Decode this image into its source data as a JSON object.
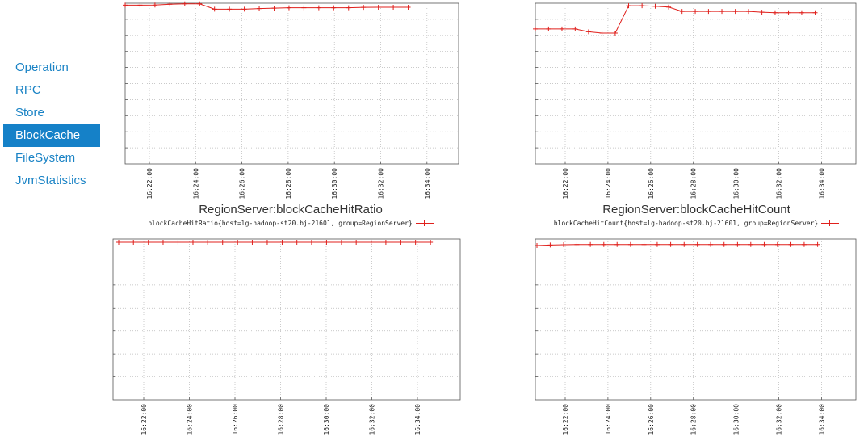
{
  "nav": {
    "items": [
      {
        "label": "Operation",
        "active": false
      },
      {
        "label": "RPC",
        "active": false
      },
      {
        "label": "Store",
        "active": false
      },
      {
        "label": "BlockCache",
        "active": true
      },
      {
        "label": "FileSystem",
        "active": false
      },
      {
        "label": "JvmStatistics",
        "active": false
      }
    ]
  },
  "colors": {
    "series": "#e0201c",
    "grid": "#b8b8b8",
    "nav_active": "#1581c8",
    "nav_link": "#1a83c5"
  },
  "chart_data": [
    {
      "type": "line",
      "title": "RegionServer:blockCacheHitRatio",
      "legend": "blockCacheHitRatio{host=lg-hadoop-st20.bj-21601, group=RegionServer}",
      "x_ticks": [
        "16:22:00",
        "16:24:00",
        "16:26:00",
        "16:28:00",
        "16:30:00",
        "16:32:00",
        "16:34:00"
      ],
      "grid": true,
      "series": [
        {
          "x_minutes": [
            0.0,
            0.74,
            1.48,
            2.22,
            2.96,
            3.7,
            4.44,
            5.18,
            5.92,
            6.66,
            7.4,
            8.14,
            8.88,
            9.62,
            10.36,
            11.1,
            11.84,
            12.58,
            13.32,
            14.06
          ],
          "values": [
            98.8,
            98.8,
            98.9,
            99.4,
            99.6,
            99.6,
            96.3,
            96.3,
            96.3,
            96.7,
            96.9,
            97.2,
            97.2,
            97.2,
            97.2,
            97.2,
            97.4,
            97.5,
            97.5,
            97.5
          ]
        }
      ]
    },
    {
      "type": "line",
      "title": "RegionServer:blockCacheHitCount",
      "legend": "blockCacheHitCount{host=lg-hadoop-st20.bj-21601, group=RegionServer}",
      "x_ticks": [
        "16:22:00",
        "16:24:00",
        "16:26:00",
        "16:28:00",
        "16:30:00",
        "16:32:00",
        "16:34:00"
      ],
      "grid": true,
      "series": [
        {
          "x_minutes": [
            0.0,
            0.66,
            1.33,
            1.99,
            2.66,
            3.33,
            3.99,
            4.66,
            5.33,
            5.99,
            6.66,
            7.33,
            7.99,
            8.65,
            9.32,
            9.99,
            10.65,
            11.32,
            11.98,
            12.65,
            13.31,
            13.98
          ],
          "values": [
            84.0,
            84.0,
            84.0,
            84.0,
            82.2,
            81.4,
            81.4,
            98.4,
            98.4,
            98.1,
            97.6,
            94.9,
            94.9,
            94.9,
            94.9,
            94.9,
            94.9,
            94.4,
            94.1,
            94.1,
            94.1,
            94.1
          ]
        }
      ]
    },
    {
      "type": "line",
      "title": "",
      "legend": "",
      "x_ticks": [
        "16:22:00",
        "16:24:00",
        "16:26:00",
        "16:28:00",
        "16:30:00",
        "16:32:00",
        "16:34:00"
      ],
      "grid": true,
      "series": [
        {
          "x_minutes": [
            0.0,
            0.66,
            1.33,
            1.99,
            2.66,
            3.33,
            3.99,
            4.66,
            5.33,
            5.99,
            6.66,
            7.33,
            7.99,
            8.65,
            9.32,
            9.99,
            10.65,
            11.32,
            11.98,
            12.65,
            13.31,
            13.98
          ],
          "values": [
            98.0,
            98.0,
            98.0,
            98.0,
            98.0,
            98.0,
            98.0,
            98.0,
            98.0,
            98.0,
            98.0,
            98.0,
            98.0,
            98.0,
            98.0,
            98.0,
            98.0,
            98.0,
            98.0,
            98.0,
            98.0,
            98.0
          ]
        }
      ]
    },
    {
      "type": "line",
      "title": "",
      "legend": "",
      "x_ticks": [
        "16:22:00",
        "16:24:00",
        "16:26:00",
        "16:28:00",
        "16:30:00",
        "16:32:00",
        "16:34:00"
      ],
      "grid": true,
      "series": [
        {
          "x_minutes": [
            0.0,
            0.66,
            1.33,
            1.99,
            2.66,
            3.33,
            3.99,
            4.66,
            5.33,
            5.99,
            6.66,
            7.33,
            7.99,
            8.65,
            9.32,
            9.99,
            10.65,
            11.32,
            11.98,
            12.65,
            13.31,
            13.98
          ],
          "values": [
            96.0,
            96.3,
            96.5,
            96.6,
            96.6,
            96.6,
            96.6,
            96.6,
            96.6,
            96.6,
            96.6,
            96.6,
            96.6,
            96.6,
            96.6,
            96.6,
            96.6,
            96.6,
            96.6,
            96.6,
            96.6,
            96.6
          ]
        }
      ]
    }
  ]
}
